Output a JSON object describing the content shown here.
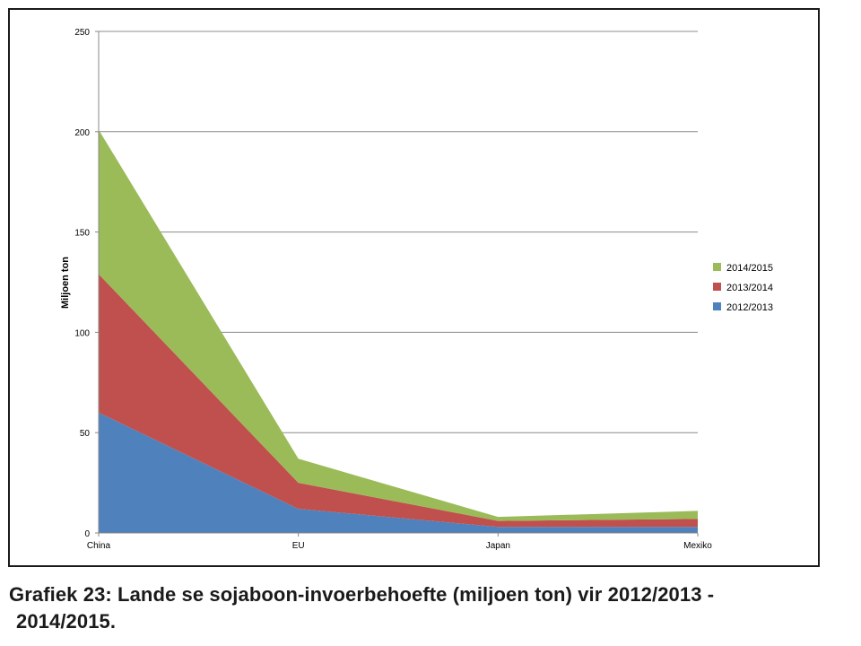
{
  "caption": {
    "line1": "Grafiek 23: Lande se sojaboon-invoerbehoefte (miljoen ton) vir 2012/2013 -",
    "line2": "2014/2015."
  },
  "chart_data": {
    "type": "area",
    "stacked": true,
    "categories": [
      "China",
      "EU",
      "Japan",
      "Mexiko"
    ],
    "ylabel": "Miljoen ton",
    "xlabel": "",
    "ylim": [
      0,
      250
    ],
    "yticks": [
      "0",
      "50",
      "100",
      "150",
      "200",
      "250"
    ],
    "grid": true,
    "legend_position": "right",
    "series": [
      {
        "name": "2012/2013",
        "color": "#4f81bd",
        "values": [
          60,
          12,
          3,
          3
        ]
      },
      {
        "name": "2013/2014",
        "color": "#c0504d",
        "values": [
          69,
          13,
          3,
          4
        ]
      },
      {
        "name": "2014/2015",
        "color": "#9bbb59",
        "values": [
          72,
          12,
          2,
          4
        ]
      }
    ]
  }
}
